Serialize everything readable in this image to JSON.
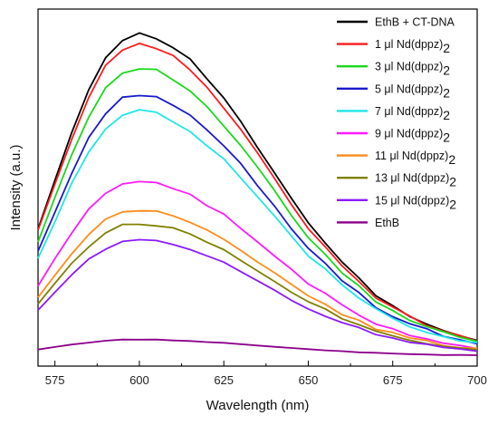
{
  "chart_data": {
    "type": "line",
    "xlabel": "Wavelength (nm)",
    "ylabel": "Intensity (a.u.)",
    "xlim": [
      570,
      700
    ],
    "ylim": [
      0,
      100
    ],
    "x_ticks": [
      "575",
      "600",
      "625",
      "650",
      "675",
      "700"
    ],
    "y_tick_labels": false,
    "grid": false,
    "legend_position": "top-right",
    "series": [
      {
        "name": "EthB + CT-DNA",
        "legend": [
          "EthB + CT-DNA",
          ""
        ],
        "color": "#000000",
        "peak": 100
      },
      {
        "name": "1 μl Nd(dppz)2",
        "legend": [
          "1 μl Nd(dppz)",
          "2"
        ],
        "color": "#ff1a1a",
        "peak": 97
      },
      {
        "name": "3 μl Nd(dppz)2",
        "legend": [
          "3 μl Nd(dppz)",
          "2"
        ],
        "color": "#19d919",
        "peak": 90
      },
      {
        "name": "5 μl Nd(dppz)2",
        "legend": [
          "5 μl Nd(dppz)",
          "2"
        ],
        "color": "#1a1acc",
        "peak": 82
      },
      {
        "name": "7 μl Nd(dppz)2",
        "legend": [
          "7 μl Nd(dppz)",
          "2"
        ],
        "color": "#1fe6e6",
        "peak": 77
      },
      {
        "name": "9 μl Nd(dppz)2",
        "legend": [
          "9 μl Nd(dppz)",
          "2"
        ],
        "color": "#ff1aff",
        "peak": 56
      },
      {
        "name": "11 μl Nd(dppz)2",
        "legend": [
          "11 μl Nd(dppz)",
          "2"
        ],
        "color": "#ff8c1a",
        "peak": 47
      },
      {
        "name": "13 μl Nd(dppz)2",
        "legend": [
          "13 μl Nd(dppz)",
          "2"
        ],
        "color": "#808000",
        "peak": 43
      },
      {
        "name": "15 μl Nd(dppz)2",
        "legend": [
          "15 μl Nd(dppz)",
          "2"
        ],
        "color": "#8c1aff",
        "peak": 38
      },
      {
        "name": "EthB",
        "legend": [
          "EthB",
          ""
        ],
        "color": "#8b008b",
        "peak": 8
      }
    ],
    "x": [
      570,
      575,
      580,
      585,
      590,
      595,
      600,
      605,
      610,
      615,
      620,
      625,
      630,
      635,
      640,
      645,
      650,
      655,
      660,
      665,
      670,
      675,
      680,
      685,
      690,
      695,
      700
    ],
    "shape": [
      0.4,
      0.55,
      0.7,
      0.83,
      0.93,
      0.985,
      1.0,
      0.99,
      0.96,
      0.92,
      0.86,
      0.8,
      0.73,
      0.65,
      0.57,
      0.49,
      0.41,
      0.35,
      0.29,
      0.24,
      0.19,
      0.155,
      0.125,
      0.1,
      0.08,
      0.065,
      0.05
    ]
  }
}
